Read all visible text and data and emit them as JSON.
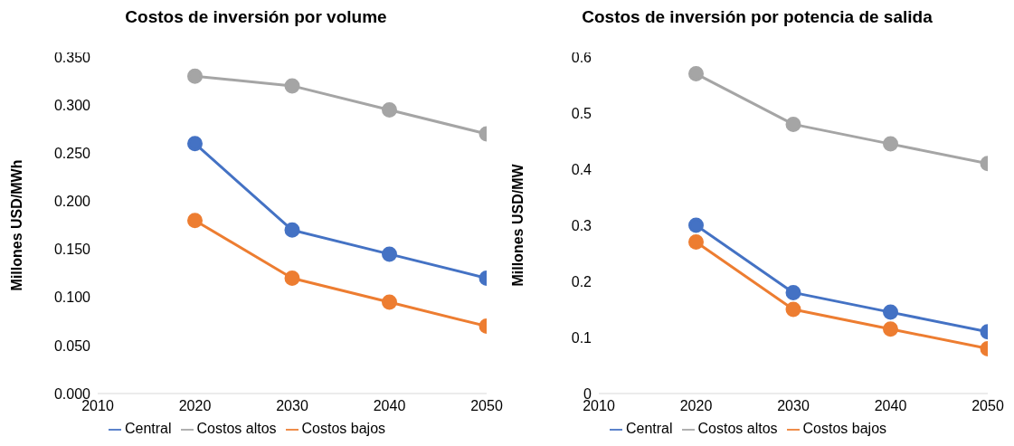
{
  "chart_data": [
    {
      "type": "line",
      "title": "Costos de inversión por volume",
      "ylabel": "Millones  USD/MWh",
      "x": [
        2020,
        2030,
        2040,
        2050
      ],
      "xlim": [
        2010,
        2050
      ],
      "xticks": [
        2010,
        2020,
        2030,
        2040,
        2050
      ],
      "ylim": [
        0,
        0.35
      ],
      "yticks": [
        {
          "value": 0,
          "label": "0.000"
        },
        {
          "value": 0.05,
          "label": "0.050"
        },
        {
          "value": 0.1,
          "label": "0.100"
        },
        {
          "value": 0.15,
          "label": "0.150"
        },
        {
          "value": 0.2,
          "label": "0.200"
        },
        {
          "value": 0.25,
          "label": "0.250"
        },
        {
          "value": 0.3,
          "label": "0.300"
        },
        {
          "value": 0.35,
          "label": "0.350"
        }
      ],
      "grid": false,
      "legend": "bottom",
      "marker": "circle",
      "line_style": "solid",
      "series": [
        {
          "name": "Central",
          "color": "#4472c4",
          "values": [
            0.26,
            0.17,
            0.145,
            0.12
          ]
        },
        {
          "name": "Costos altos",
          "color": "#a5a5a5",
          "values": [
            0.33,
            0.32,
            0.295,
            0.27
          ]
        },
        {
          "name": "Costos bajos",
          "color": "#ed7d31",
          "values": [
            0.18,
            0.12,
            0.095,
            0.07
          ]
        }
      ]
    },
    {
      "type": "line",
      "title": "Costos de inversión por potencia de salida",
      "ylabel": "Millones  USD/MW",
      "x": [
        2020,
        2030,
        2040,
        2050
      ],
      "xlim": [
        2010,
        2050
      ],
      "xticks": [
        2010,
        2020,
        2030,
        2040,
        2050
      ],
      "ylim": [
        0,
        0.6
      ],
      "yticks": [
        0,
        0.1,
        0.2,
        0.3,
        0.4,
        0.5,
        0.6
      ],
      "grid": false,
      "legend": "bottom",
      "marker": "circle",
      "line_style": "solid",
      "series": [
        {
          "name": "Central",
          "color": "#4472c4",
          "values": [
            0.3,
            0.18,
            0.145,
            0.11
          ]
        },
        {
          "name": "Costos altos",
          "color": "#a5a5a5",
          "values": [
            0.57,
            0.48,
            0.445,
            0.41
          ]
        },
        {
          "name": "Costos bajos",
          "color": "#ed7d31",
          "values": [
            0.27,
            0.15,
            0.115,
            0.08
          ]
        }
      ]
    }
  ]
}
